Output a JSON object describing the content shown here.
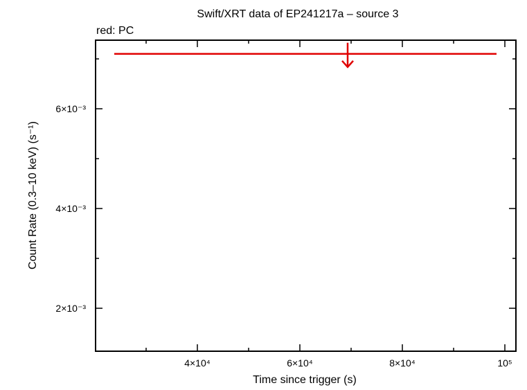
{
  "chart_data": {
    "type": "upper_limit",
    "title": "Swift/XRT data of EP241217a – source 3",
    "subtitle": "red: PC",
    "xlabel": "Time since trigger (s)",
    "ylabel": "Count Rate (0.3–10 keV) (s⁻¹)",
    "xlim": [
      20135,
      102160
    ],
    "ylim": [
      0.001139,
      0.007375
    ],
    "xticks": [
      {
        "value": 40000,
        "label": "4×10⁴"
      },
      {
        "value": 60000,
        "label": "6×10⁴"
      },
      {
        "value": 80000,
        "label": "8×10⁴"
      },
      {
        "value": 100000,
        "label": "10⁵"
      }
    ],
    "xminor": [
      30000,
      50000,
      70000,
      90000
    ],
    "yticks": [
      {
        "value": 0.002,
        "label": "2×10⁻³"
      },
      {
        "value": 0.004,
        "label": "4×10⁻³"
      },
      {
        "value": 0.006,
        "label": "6×10⁻³"
      }
    ],
    "yminor": [
      0.003,
      0.005,
      0.007
    ],
    "series": [
      {
        "name": "PC",
        "color": "#e00000",
        "x": [
          69324
        ],
        "x_low": [
          23784
        ],
        "x_high": [
          98378
        ],
        "values": [
          0.0071
        ]
      }
    ]
  }
}
